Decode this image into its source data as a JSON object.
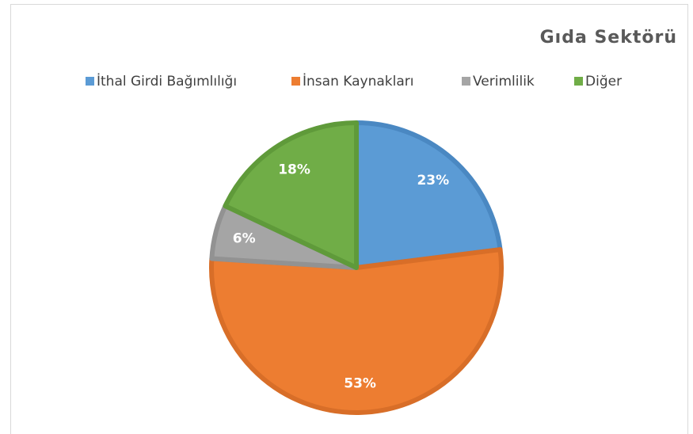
{
  "chart_data": {
    "type": "pie",
    "title": "Gıda Sektörü",
    "categories": [
      "İthal Girdi Bağımlılığı",
      "İnsan Kaynakları",
      "Verimlilik",
      "Diğer"
    ],
    "values": [
      23,
      53,
      6,
      18
    ],
    "value_labels": [
      "23%",
      "53%",
      "6%",
      "18%"
    ],
    "colors": [
      "#5b9bd5",
      "#ed7d31",
      "#a5a5a5",
      "#70ad47"
    ],
    "borders": [
      "#4a88c2",
      "#d86e28",
      "#929292",
      "#5f9a3a"
    ],
    "legend": "top"
  }
}
